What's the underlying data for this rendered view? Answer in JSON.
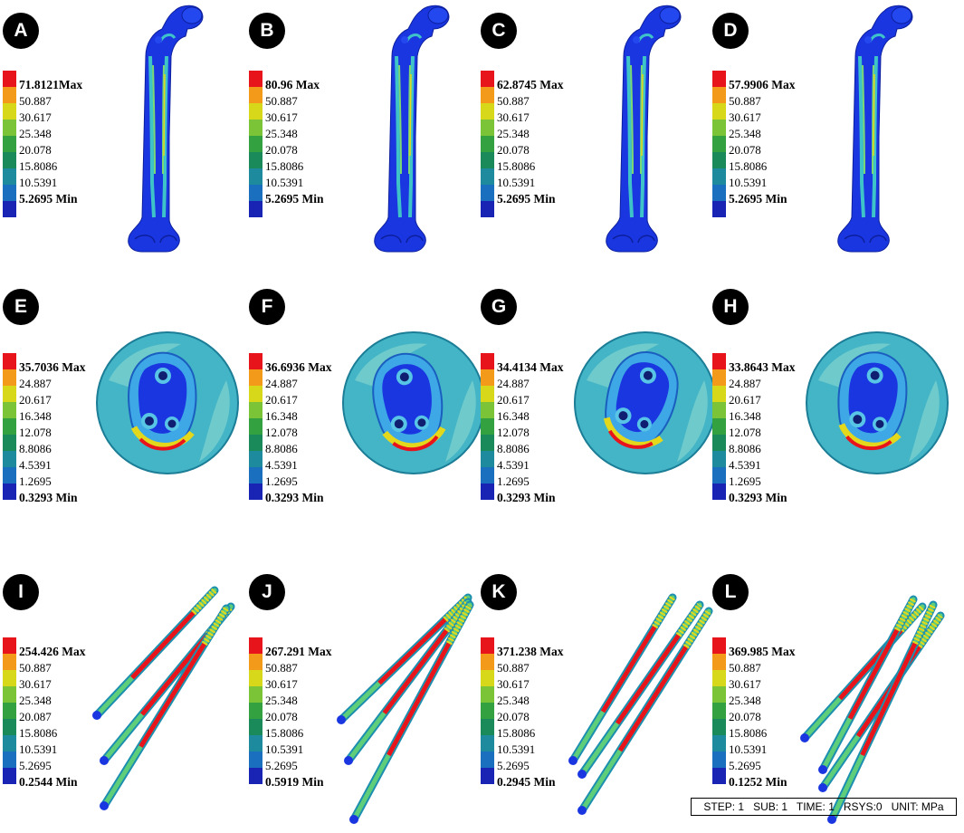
{
  "colors": {
    "scale": [
      "#e8141b",
      "#f39a1b",
      "#d8d81a",
      "#7cc437",
      "#33a13f",
      "#1b8a5a",
      "#1e8a9e",
      "#1a6fbf",
      "#1a24b4"
    ],
    "bone_blue": "#1a36e0",
    "cortex_cyan": "#3ec3c8",
    "stress_red": "#e8141b",
    "stress_yellow": "#e4d81c"
  },
  "panels": [
    {
      "letter": "A",
      "kind": "femur",
      "labels": [
        "71.8121Max",
        "50.887",
        "30.617",
        "25.348",
        "20.078",
        "15.8086",
        "10.5391",
        "5.2695 Min"
      ]
    },
    {
      "letter": "B",
      "kind": "femur",
      "labels": [
        "80.96 Max",
        "50.887",
        "30.617",
        "25.348",
        "20.078",
        "15.8086",
        "10.5391",
        "5.2695 Min"
      ]
    },
    {
      "letter": "C",
      "kind": "femur",
      "labels": [
        "62.8745 Max",
        "50.887",
        "30.617",
        "25.348",
        "20.078",
        "15.8086",
        "10.5391",
        "5.2695 Min"
      ]
    },
    {
      "letter": "D",
      "kind": "femur",
      "labels": [
        "57.9906 Max",
        "50.887",
        "30.617",
        "25.348",
        "20.078",
        "15.8086",
        "10.5391",
        "5.2695 Min"
      ]
    },
    {
      "letter": "E",
      "kind": "section",
      "labels": [
        "35.7036 Max",
        "24.887",
        "20.617",
        "16.348",
        "12.078",
        "8.8086",
        "4.5391",
        "1.2695",
        "0.3293 Min"
      ]
    },
    {
      "letter": "F",
      "kind": "section",
      "labels": [
        "36.6936 Max",
        "24.887",
        "20.617",
        "16.348",
        "12.078",
        "8.8086",
        "4.5391",
        "1.2695",
        "0.3293 Min"
      ]
    },
    {
      "letter": "G",
      "kind": "section",
      "labels": [
        "34.4134 Max",
        "24.887",
        "20.617",
        "16.348",
        "12.078",
        "8.8086",
        "4.5391",
        "1.2695",
        "0.3293 Min"
      ]
    },
    {
      "letter": "H",
      "kind": "section",
      "labels": [
        "33.8643 Max",
        "24.887",
        "20.617",
        "16.348",
        "12.078",
        "8.8086",
        "4.5391",
        "1.2695",
        "0.3293 Min"
      ]
    },
    {
      "letter": "I",
      "kind": "screws",
      "labels": [
        "254.426 Max",
        "50.887",
        "30.617",
        "25.348",
        "20.087",
        "15.8086",
        "10.5391",
        "5.2695",
        "0.2544 Min"
      ]
    },
    {
      "letter": "J",
      "kind": "screws",
      "labels": [
        "267.291 Max",
        "50.887",
        "30.617",
        "25.348",
        "20.078",
        "15.8086",
        "10.5391",
        "5.2695",
        "0.5919 Min"
      ]
    },
    {
      "letter": "K",
      "kind": "screws",
      "labels": [
        "371.238 Max",
        "50.887",
        "30.617",
        "25.348",
        "20.078",
        "15.8086",
        "10.5391",
        "5.2695",
        "0.2945 Min"
      ]
    },
    {
      "letter": "L",
      "kind": "screws",
      "labels": [
        "369.985 Max",
        "50.887",
        "30.617",
        "25.348",
        "20.078",
        "15.8086",
        "10.5391",
        "5.2695",
        "0.1252 Min"
      ]
    }
  ],
  "footer": {
    "text": "STEP: 1   SUB: 1   TIME: 1   RSYS:0   UNIT: MPa"
  }
}
